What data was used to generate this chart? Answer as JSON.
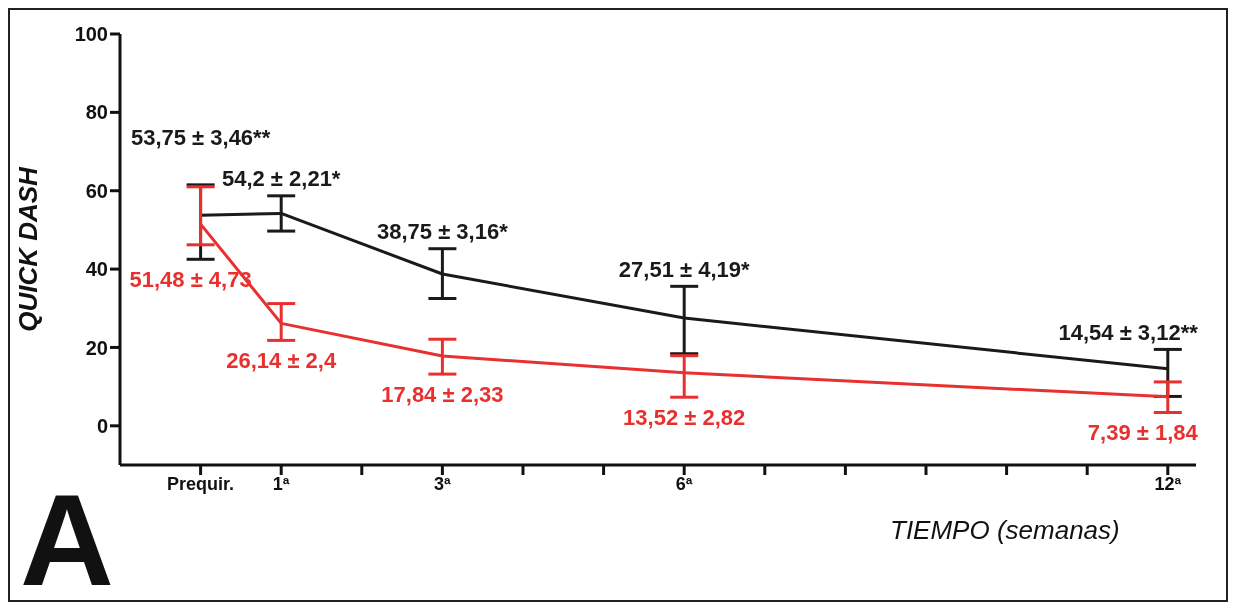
{
  "chart_data": {
    "type": "line",
    "xlabel": "TIEMPO (semanas)",
    "ylabel": "QUICK DASH",
    "x": [
      0,
      1,
      3,
      6,
      12
    ],
    "xlim": [
      -1,
      12.35
    ],
    "xticks": [
      {
        "value": 0,
        "label": "Prequir."
      },
      {
        "value": 1,
        "label": "1ª"
      },
      {
        "value": 2,
        "label": null
      },
      {
        "value": 3,
        "label": "3ª"
      },
      {
        "value": 4,
        "label": null
      },
      {
        "value": 5,
        "label": null
      },
      {
        "value": 6,
        "label": "6ª"
      },
      {
        "value": 7,
        "label": null
      },
      {
        "value": 8,
        "label": null
      },
      {
        "value": 9,
        "label": null
      },
      {
        "value": 10,
        "label": null
      },
      {
        "value": 11,
        "label": null
      },
      {
        "value": 12,
        "label": "12ª"
      }
    ],
    "ylim": [
      -10,
      100
    ],
    "yticks": [
      0,
      20,
      40,
      60,
      80,
      100
    ],
    "series": [
      {
        "color": "#1a1a1a",
        "values": [
          53.75,
          54.2,
          38.75,
          27.51,
          14.54
        ],
        "errors": [
          [
            42.5,
            61.5
          ],
          [
            49.7,
            58.7
          ],
          [
            32.5,
            45.2
          ],
          [
            18.4,
            35.6
          ],
          [
            7.5,
            19.5
          ]
        ],
        "value_labels": [
          "53,75 ± 3,46**",
          "54,2 ± 2,21*",
          "38,75 ± 3,16*",
          "27,51 ± 4,19*",
          "14,54 ± 3,12**"
        ]
      },
      {
        "color": "#e8302f",
        "values": [
          51.48,
          26.14,
          17.84,
          13.52,
          7.39
        ],
        "errors": [
          [
            46.2,
            61
          ],
          [
            21.8,
            31.2
          ],
          [
            13.2,
            22.1
          ],
          [
            7.3,
            17.9
          ],
          [
            3.4,
            11.2
          ]
        ],
        "value_labels": [
          "51,48 ± 4,73",
          "26,14 ± 2,4",
          "17,84 ± 2,33",
          "13,52 ± 2,82",
          "7,39 ± 1,84"
        ]
      }
    ],
    "annotations": [
      "A"
    ],
    "grid": false,
    "legend": false,
    "marker": "none"
  }
}
